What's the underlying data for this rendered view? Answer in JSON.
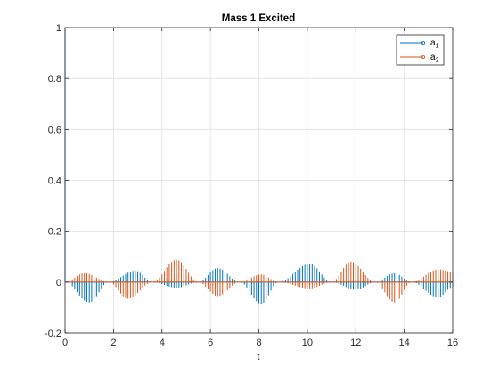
{
  "chart_data": {
    "type": "stem",
    "title": "Mass 1 Excited",
    "xlabel": "t",
    "ylabel": "",
    "xlim": [
      0,
      16
    ],
    "ylim": [
      -0.2,
      1
    ],
    "xticks": [
      0,
      2,
      4,
      6,
      8,
      10,
      12,
      14,
      16
    ],
    "yticks": [
      -0.2,
      0,
      0.2,
      0.4,
      0.6,
      0.8,
      1
    ],
    "grid": true,
    "legend_position": "top-right",
    "sample_step": 0.1,
    "series": [
      {
        "name": "a",
        "subscript": "1",
        "color": "#0072BD",
        "initial_value": 1,
        "envelope": {
          "t": [
            0,
            1.0,
            1.8,
            2.9,
            3.6,
            4.6,
            5.5,
            6.3,
            7.2,
            8.1,
            8.8,
            10.1,
            11.0,
            12.0,
            12.8,
            13.6,
            14.3,
            15.4,
            16
          ],
          "y": [
            0,
            -0.08,
            0,
            0.045,
            0,
            -0.022,
            0,
            0.055,
            0,
            -0.085,
            0,
            0.072,
            0,
            -0.03,
            0,
            0.035,
            0,
            -0.06,
            -0.02
          ]
        }
      },
      {
        "name": "a",
        "subscript": "2",
        "color": "#D95319",
        "envelope": {
          "t": [
            0,
            0.8,
            1.8,
            2.6,
            3.6,
            4.6,
            5.5,
            6.3,
            7.2,
            8.1,
            8.8,
            10.1,
            11.0,
            11.8,
            12.8,
            13.6,
            14.3,
            15.4,
            16
          ],
          "y": [
            0,
            0.035,
            0,
            -0.065,
            0,
            0.088,
            0,
            -0.055,
            0,
            0.03,
            0,
            -0.025,
            0,
            0.08,
            0,
            -0.08,
            0,
            0.05,
            0.04
          ]
        }
      }
    ]
  }
}
